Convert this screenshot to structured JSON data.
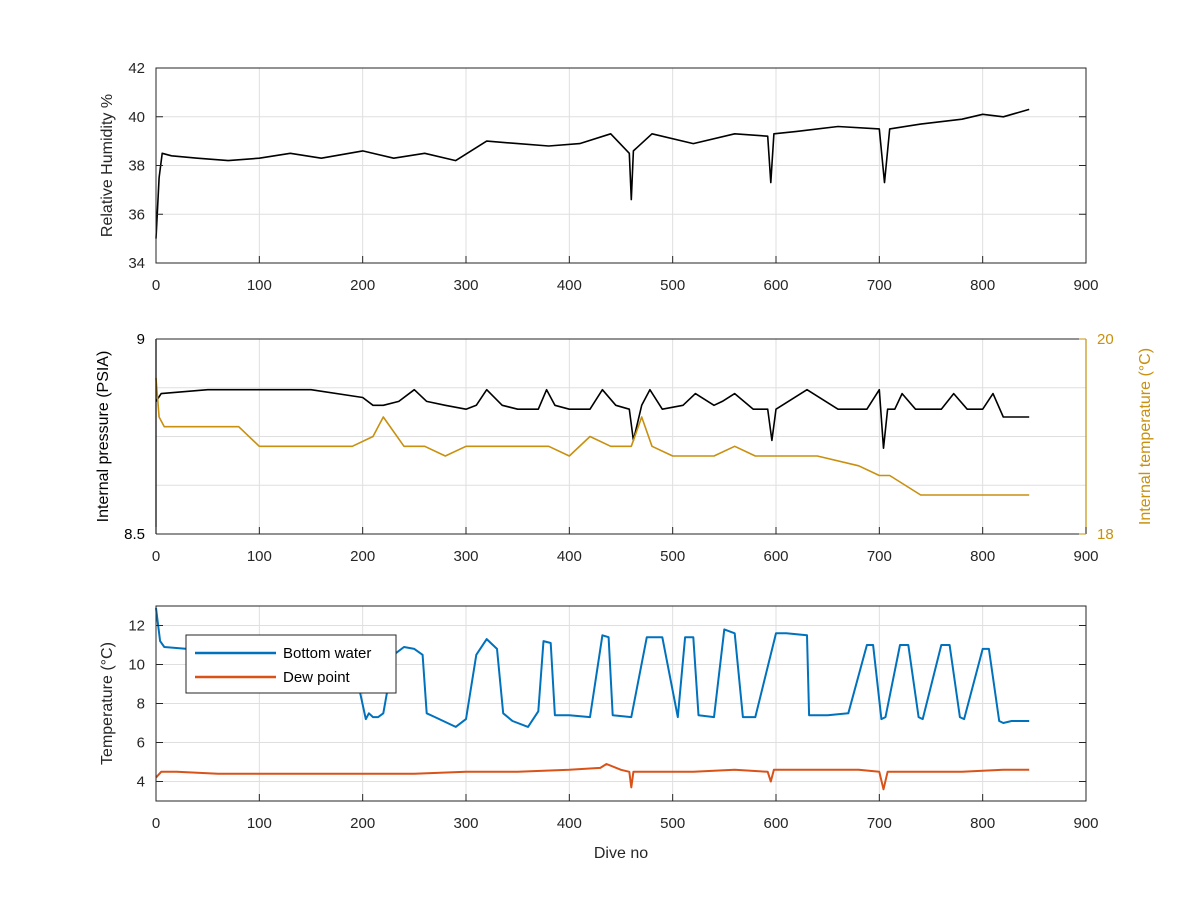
{
  "chart_data": [
    {
      "type": "line",
      "ylabel": "Relative Humidity %",
      "xlim": [
        0,
        900
      ],
      "ylim": [
        34,
        42
      ],
      "xticks": [
        "0",
        "100",
        "200",
        "300",
        "400",
        "500",
        "600",
        "700",
        "800",
        "900"
      ],
      "yticks": [
        "34",
        "36",
        "38",
        "40",
        "42"
      ],
      "grid": true,
      "series": [
        {
          "color": "#000000",
          "x": [
            0,
            3,
            6,
            15,
            40,
            70,
            100,
            130,
            160,
            200,
            230,
            260,
            290,
            320,
            350,
            380,
            410,
            440,
            458,
            460,
            462,
            480,
            520,
            560,
            592,
            595,
            598,
            620,
            660,
            700,
            705,
            710,
            740,
            780,
            800,
            820,
            845
          ],
          "y": [
            35.0,
            37.5,
            38.5,
            38.4,
            38.3,
            38.2,
            38.3,
            38.5,
            38.3,
            38.6,
            38.3,
            38.5,
            38.2,
            39.0,
            38.9,
            38.8,
            38.9,
            39.3,
            38.5,
            36.6,
            38.6,
            39.3,
            38.9,
            39.3,
            39.2,
            37.3,
            39.3,
            39.4,
            39.6,
            39.5,
            37.3,
            39.5,
            39.7,
            39.9,
            40.1,
            40.0,
            40.3
          ]
        }
      ]
    },
    {
      "type": "line",
      "ylabel": "Internal pressure (PSIA)",
      "y2label": "Internal temperature (°C)",
      "xlim": [
        0,
        900
      ],
      "ylim": [
        8.5,
        9
      ],
      "y2lim": [
        18,
        20
      ],
      "xticks": [
        "0",
        "100",
        "200",
        "300",
        "400",
        "500",
        "600",
        "700",
        "800",
        "900"
      ],
      "yticks": [
        "8.5",
        "9"
      ],
      "y2ticks": [
        "18",
        "20"
      ],
      "grid": true,
      "series": [
        {
          "axis": "left",
          "color": "#000000",
          "x": [
            0,
            5,
            50,
            100,
            150,
            200,
            210,
            220,
            235,
            250,
            262,
            280,
            300,
            310,
            320,
            335,
            350,
            370,
            378,
            386,
            400,
            420,
            432,
            445,
            458,
            462,
            470,
            478,
            490,
            510,
            522,
            540,
            548,
            560,
            578,
            592,
            596,
            600,
            630,
            660,
            688,
            700,
            704,
            708,
            715,
            722,
            735,
            760,
            772,
            785,
            800,
            810,
            820,
            845
          ],
          "y": [
            8.84,
            8.86,
            8.87,
            8.87,
            8.87,
            8.85,
            8.83,
            8.83,
            8.84,
            8.87,
            8.84,
            8.83,
            8.82,
            8.83,
            8.87,
            8.83,
            8.82,
            8.82,
            8.87,
            8.83,
            8.82,
            8.82,
            8.87,
            8.83,
            8.82,
            8.74,
            8.83,
            8.87,
            8.82,
            8.83,
            8.86,
            8.83,
            8.84,
            8.86,
            8.82,
            8.82,
            8.74,
            8.82,
            8.87,
            8.82,
            8.82,
            8.87,
            8.72,
            8.82,
            8.82,
            8.86,
            8.82,
            8.82,
            8.86,
            8.82,
            8.82,
            8.86,
            8.8,
            8.8
          ]
        },
        {
          "axis": "right",
          "color": "#c8900e",
          "x": [
            0,
            3,
            8,
            20,
            50,
            80,
            100,
            130,
            160,
            190,
            210,
            220,
            240,
            260,
            280,
            300,
            320,
            340,
            360,
            380,
            400,
            420,
            440,
            460,
            470,
            480,
            500,
            520,
            540,
            560,
            580,
            600,
            640,
            680,
            700,
            710,
            740,
            760,
            780,
            800,
            820,
            845
          ],
          "y": [
            19.6,
            19.2,
            19.1,
            19.1,
            19.1,
            19.1,
            18.9,
            18.9,
            18.9,
            18.9,
            19.0,
            19.2,
            18.9,
            18.9,
            18.8,
            18.9,
            18.9,
            18.9,
            18.9,
            18.9,
            18.8,
            19.0,
            18.9,
            18.9,
            19.2,
            18.9,
            18.8,
            18.8,
            18.8,
            18.9,
            18.8,
            18.8,
            18.8,
            18.7,
            18.6,
            18.6,
            18.4,
            18.4,
            18.4,
            18.4,
            18.4,
            18.4
          ]
        }
      ]
    },
    {
      "type": "line",
      "xlabel": "Dive no",
      "ylabel": "Temperature (°C)",
      "xlim": [
        0,
        900
      ],
      "ylim": [
        3,
        13
      ],
      "xticks": [
        "0",
        "100",
        "200",
        "300",
        "400",
        "500",
        "600",
        "700",
        "800",
        "900"
      ],
      "yticks": [
        "4",
        "6",
        "8",
        "10",
        "12"
      ],
      "grid": true,
      "legend_position": "top-left",
      "series": [
        {
          "name": "Bottom water",
          "color": "#0072bd",
          "x": [
            0,
            4,
            8,
            30,
            60,
            100,
            150,
            190,
            203,
            206,
            210,
            215,
            220,
            230,
            240,
            250,
            258,
            262,
            270,
            290,
            300,
            310,
            320,
            330,
            336,
            345,
            360,
            370,
            375,
            382,
            386,
            400,
            420,
            432,
            438,
            442,
            460,
            475,
            490,
            505,
            512,
            520,
            525,
            540,
            550,
            560,
            568,
            580,
            600,
            610,
            630,
            632,
            650,
            670,
            688,
            694,
            702,
            706,
            720,
            728,
            738,
            742,
            760,
            768,
            778,
            782,
            800,
            806,
            816,
            820,
            828,
            845
          ],
          "y": [
            12.9,
            11.2,
            10.9,
            10.8,
            10.8,
            10.7,
            10.6,
            10.4,
            7.2,
            7.5,
            7.3,
            7.3,
            7.5,
            10.5,
            10.9,
            10.8,
            10.5,
            7.5,
            7.3,
            6.8,
            7.2,
            10.5,
            11.3,
            10.8,
            7.5,
            7.1,
            6.8,
            7.6,
            11.2,
            11.1,
            7.4,
            7.4,
            7.3,
            11.5,
            11.4,
            7.4,
            7.3,
            11.4,
            11.4,
            7.3,
            11.4,
            11.4,
            7.4,
            7.3,
            11.8,
            11.6,
            7.3,
            7.3,
            11.6,
            11.6,
            11.5,
            7.4,
            7.4,
            7.5,
            11.0,
            11.0,
            7.2,
            7.3,
            11.0,
            11.0,
            7.3,
            7.2,
            11.0,
            11.0,
            7.3,
            7.2,
            10.8,
            10.8,
            7.1,
            7.0,
            7.1,
            7.1
          ]
        },
        {
          "name": "Dew point",
          "color": "#d95319",
          "x": [
            0,
            5,
            20,
            60,
            100,
            150,
            200,
            250,
            300,
            350,
            400,
            430,
            436,
            450,
            458,
            460,
            462,
            480,
            520,
            560,
            592,
            595,
            598,
            640,
            680,
            700,
            704,
            708,
            740,
            780,
            820,
            845
          ],
          "y": [
            4.2,
            4.5,
            4.5,
            4.4,
            4.4,
            4.4,
            4.4,
            4.4,
            4.5,
            4.5,
            4.6,
            4.7,
            4.9,
            4.6,
            4.5,
            3.7,
            4.5,
            4.5,
            4.5,
            4.6,
            4.5,
            4.0,
            4.6,
            4.6,
            4.6,
            4.5,
            3.6,
            4.5,
            4.5,
            4.5,
            4.6,
            4.6
          ]
        }
      ]
    }
  ]
}
